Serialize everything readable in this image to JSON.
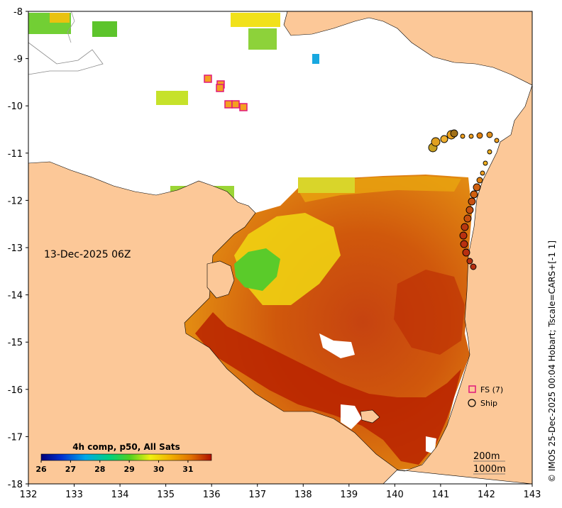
{
  "map": {
    "date_label": "13-Dec-2025 06Z",
    "side_caption": "© IMOS 25-Dec-2025 00:04 Hobart; Tscale=CARS+[-1 1]",
    "colorbar": {
      "title": "4h comp, p50, All Sats",
      "ticks": [
        "26",
        "27",
        "28",
        "29",
        "30",
        "31"
      ],
      "range": [
        26,
        31.8
      ]
    },
    "legend": {
      "fs_label": "FS (7)",
      "ship_label": "Ship",
      "fs_color": "#e0187a",
      "ship_color": "#000000"
    },
    "contours": {
      "c200": "200m",
      "c1000": "1000m"
    },
    "x_axis": {
      "range": [
        132,
        143
      ],
      "ticks": [
        "132",
        "133",
        "134",
        "135",
        "136",
        "137",
        "138",
        "139",
        "140",
        "141",
        "142",
        "143"
      ]
    },
    "y_axis": {
      "range": [
        -18,
        -8
      ],
      "ticks": [
        "-8",
        "-9",
        "-10",
        "-11",
        "-12",
        "-13",
        "-14",
        "-15",
        "-16",
        "-17",
        "-18"
      ]
    },
    "colors": {
      "land": "#fcc898",
      "sst_hot": "#b81f00",
      "sst_warm": "#d2630a",
      "sst_mid": "#e89a10",
      "sst_yellow": "#f2dd10",
      "sst_green": "#62d02a",
      "cloud": "#ffffff"
    }
  }
}
